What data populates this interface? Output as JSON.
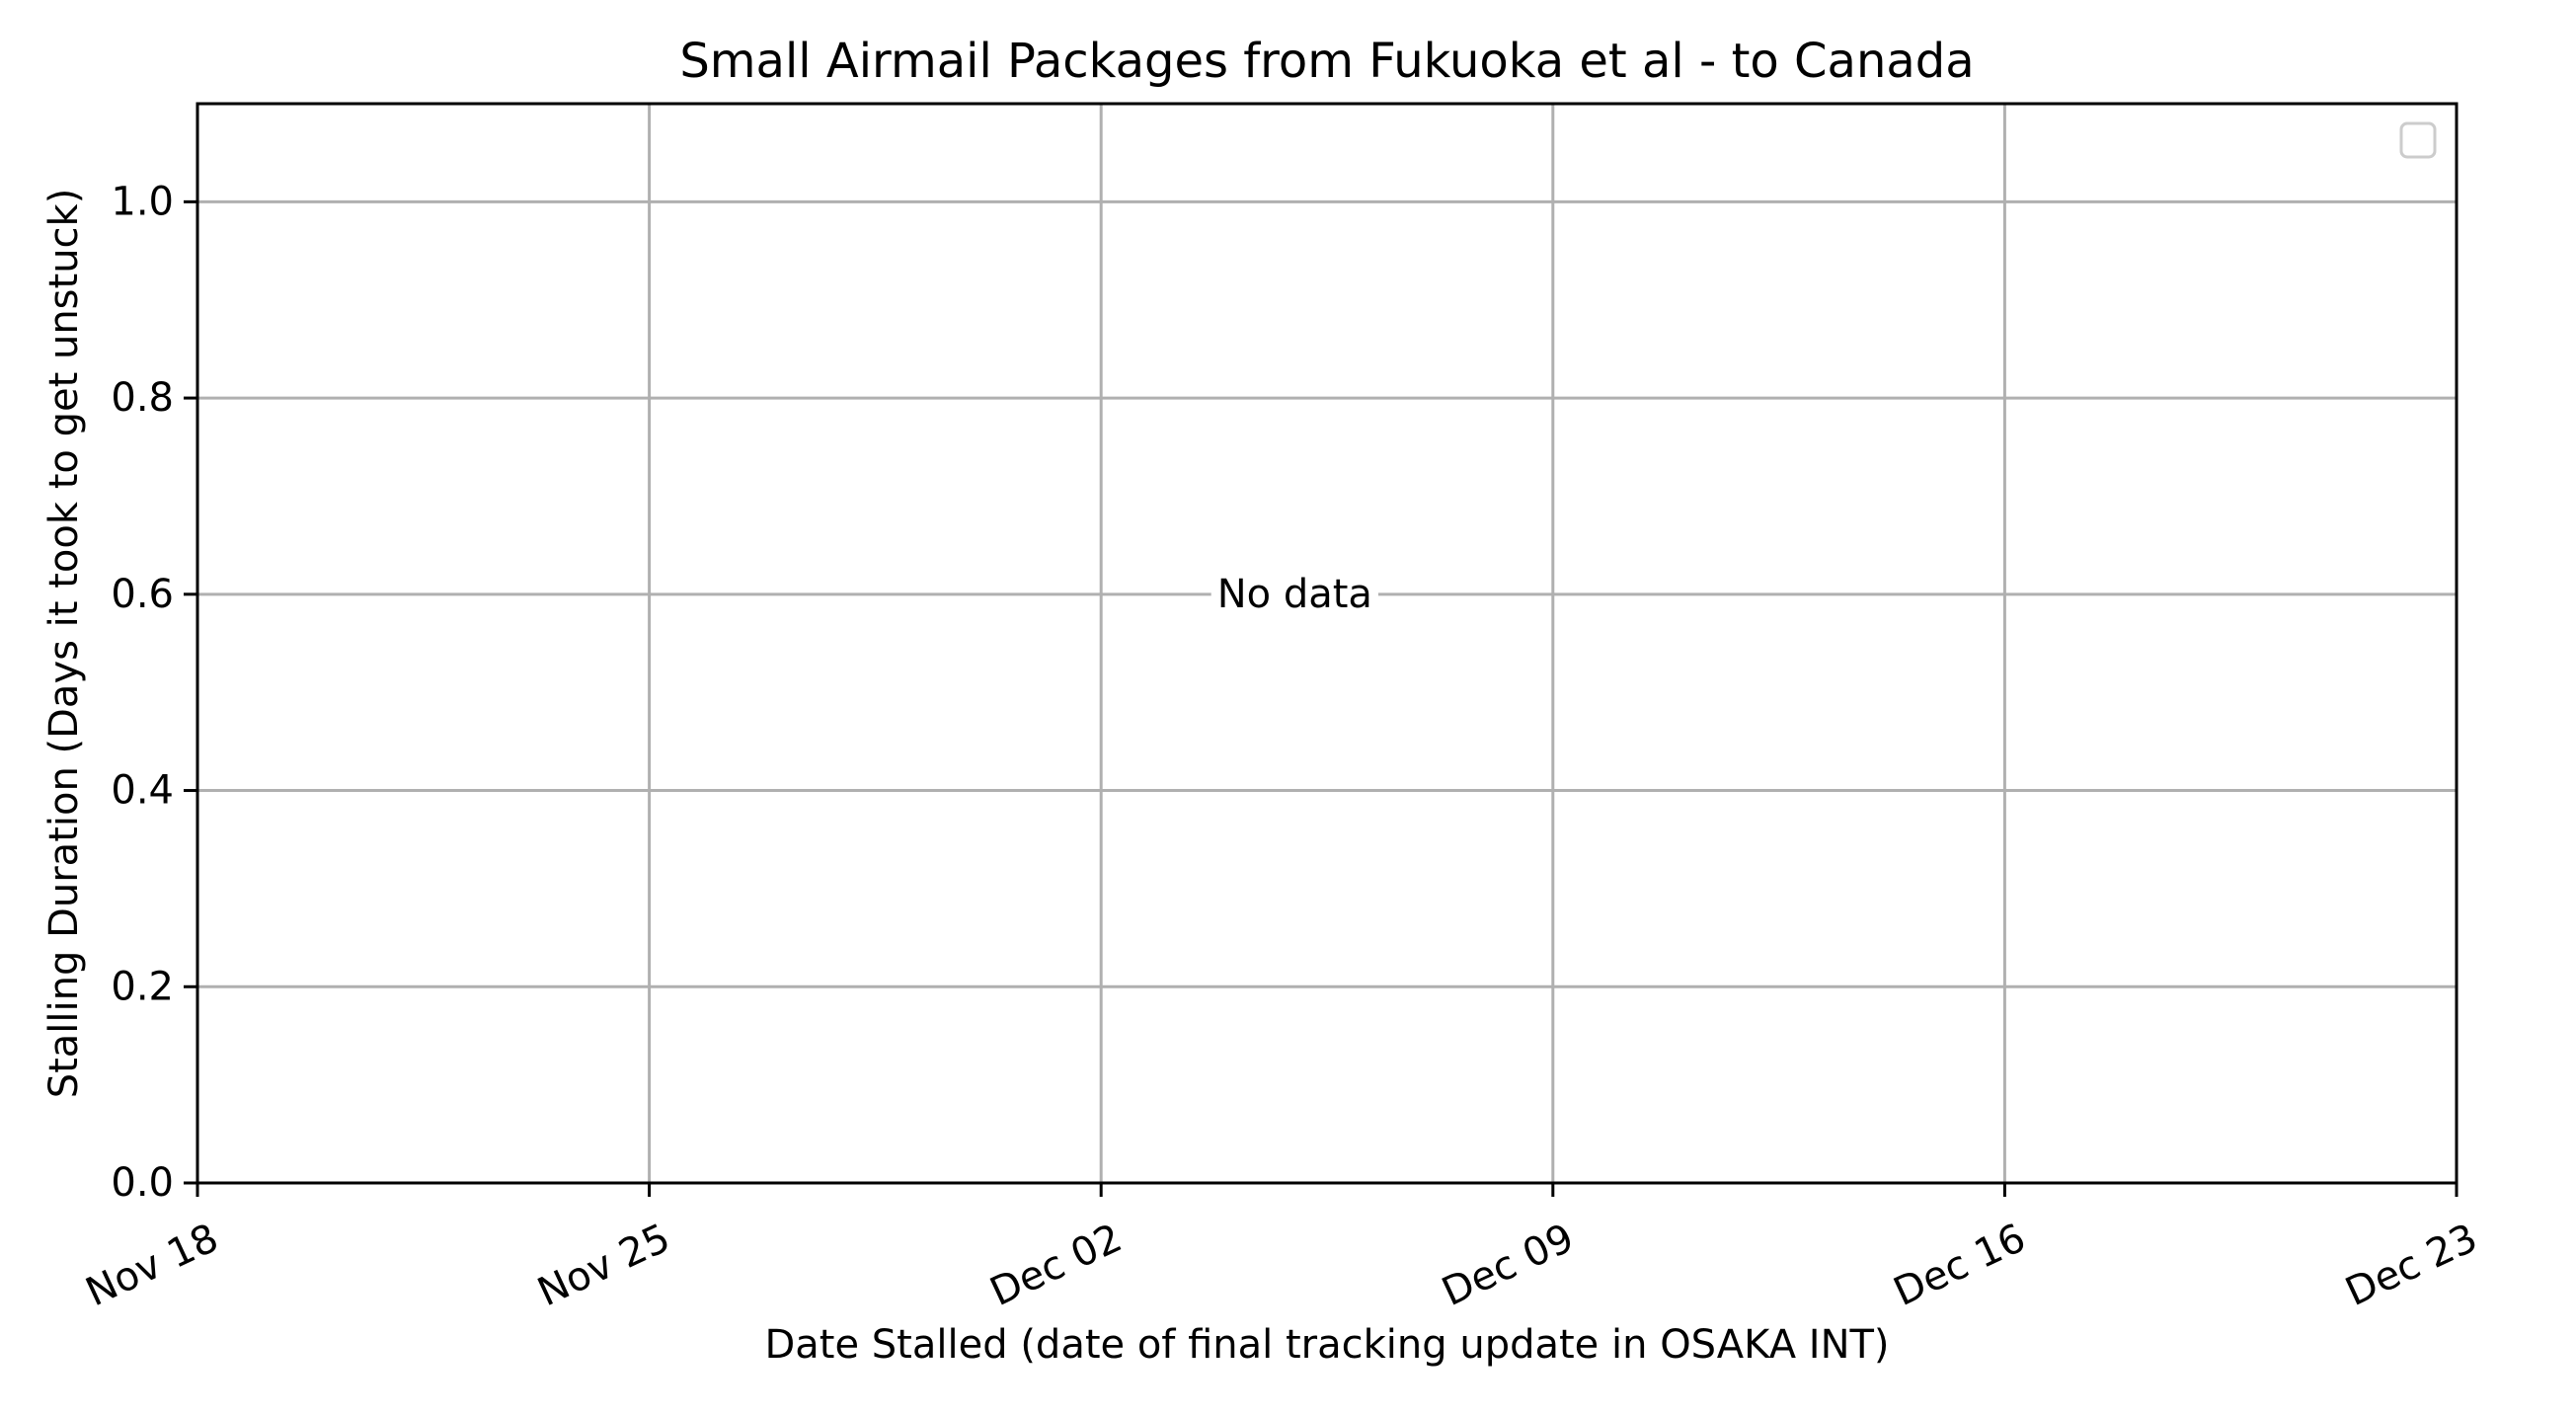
{
  "chart_data": {
    "type": "scatter",
    "title": "Small Airmail Packages from Fukuoka et al - to Canada",
    "xlabel": "Date Stalled (date of final tracking update in OSAKA INT)",
    "ylabel": "Stalling Duration (Days it took to get unstuck)",
    "x_axis": {
      "scale": "date",
      "xlim": [
        "Nov 18",
        "Dec 23"
      ],
      "tick_labels": [
        "Nov 18",
        "Nov 25",
        "Dec 02",
        "Dec 09",
        "Dec 16",
        "Dec 23"
      ],
      "tick_rotation_deg": 25
    },
    "y_axis": {
      "ylim": [
        0.0,
        1.1
      ],
      "ticks": [
        0.0,
        0.2,
        0.4,
        0.6,
        0.8,
        1.0
      ],
      "tick_labels": [
        "0.0",
        "0.2",
        "0.4",
        "0.6",
        "0.8",
        "1.0"
      ]
    },
    "grid": true,
    "legend": {
      "placement": "top-right",
      "entries": []
    },
    "annotations": [
      {
        "text": "No data",
        "x": "Dec 05",
        "y": 0.6
      }
    ],
    "series": []
  },
  "colors": {
    "axes": "#000000",
    "grid": "#b0b0b0",
    "background": "#ffffff",
    "legend_border": "#cccccc"
  }
}
